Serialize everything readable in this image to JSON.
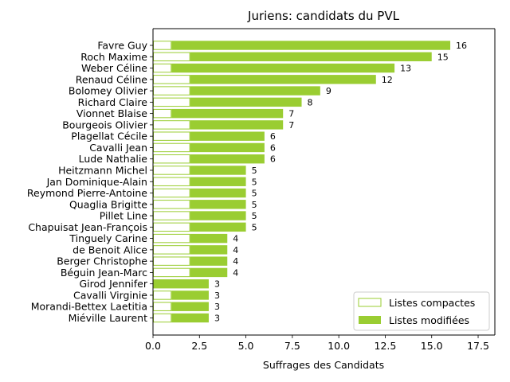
{
  "chart_data": {
    "type": "bar",
    "orientation": "horizontal",
    "stacked": true,
    "title": "Juriens: candidats du PVL",
    "xlabel": "Suffrages des Candidats",
    "ylabel": "",
    "xlim": [
      0,
      18.4
    ],
    "xticks": [
      0,
      2.5,
      5,
      7.5,
      10,
      12.5,
      15,
      17.5
    ],
    "xtick_labels": [
      "0.0",
      "2.5",
      "5.0",
      "7.5",
      "10.0",
      "12.5",
      "15.0",
      "17.5"
    ],
    "grid": false,
    "legend_position": "bottom-right",
    "categories": [
      "Favre Guy",
      "Roch Maxime",
      "Weber Céline",
      "Renaud Céline",
      "Bolomey Olivier",
      "Richard Claire",
      "Vionnet Blaise",
      "Bourgeois Olivier",
      "Plagellat Cécile",
      "Cavalli Jean",
      "Lude Nathalie",
      "Heitzmann Michel",
      "Jan Dominique-Alain",
      "Reymond Pierre-Antoine",
      "Quaglia Brigitte",
      "Pillet Line",
      "Chapuisat Jean-François",
      "Tinguely Carine",
      "de Benoit Alice",
      "Berger Christophe",
      "Béguin Jean-Marc",
      "Girod Jennifer",
      "Cavalli Virginie",
      "Morandi-Bettex Laetitia",
      "Miéville Laurent"
    ],
    "series": [
      {
        "name": "Listes compactes",
        "color": "#9acd32",
        "fill": "none",
        "values": [
          1,
          2,
          1,
          2,
          2,
          2,
          1,
          2,
          2,
          2,
          2,
          2,
          2,
          2,
          2,
          2,
          2,
          2,
          2,
          2,
          2,
          0,
          1,
          1,
          1
        ]
      },
      {
        "name": "Listes modifiées",
        "color": "#9acd32",
        "fill": "solid",
        "values": [
          15,
          13,
          12,
          10,
          7,
          6,
          6,
          5,
          4,
          4,
          4,
          3,
          3,
          3,
          3,
          3,
          3,
          2,
          2,
          2,
          2,
          3,
          2,
          2,
          2
        ]
      }
    ],
    "totals": [
      16,
      15,
      13,
      12,
      9,
      8,
      7,
      7,
      6,
      6,
      6,
      5,
      5,
      5,
      5,
      5,
      5,
      4,
      4,
      4,
      4,
      3,
      3,
      3,
      3
    ]
  }
}
